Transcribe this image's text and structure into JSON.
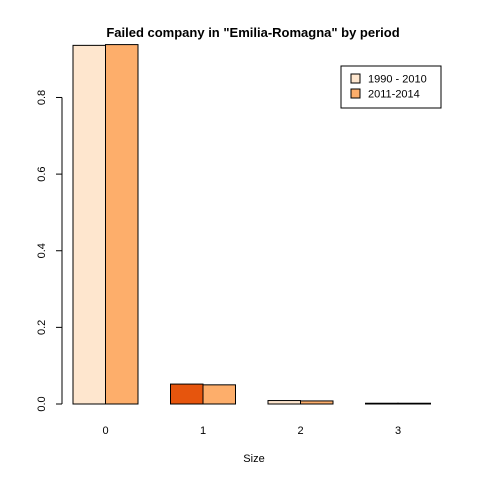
{
  "chart_data": {
    "type": "bar",
    "title": "Failed company in \"Emilia-Romagna\" by period",
    "xlabel": "Size",
    "ylabel": "",
    "categories": [
      "0",
      "1",
      "2",
      "3"
    ],
    "yticks": [
      "0.0",
      "0.2",
      "0.4",
      "0.6",
      "0.8"
    ],
    "ylim": [
      0,
      0.95
    ],
    "grid": false,
    "legend_position": "top-right",
    "series": [
      {
        "name": "1990 - 2010",
        "values": [
          0.936,
          0.052,
          0.009,
          0.002
        ],
        "color": "#FEE6CE"
      },
      {
        "name": "2011-2014",
        "values": [
          0.938,
          0.05,
          0.008,
          0.002
        ],
        "color": "#FDAE6B"
      }
    ],
    "highlight": {
      "category_index": 1,
      "series_index": 0,
      "color": "#E6550D"
    }
  }
}
